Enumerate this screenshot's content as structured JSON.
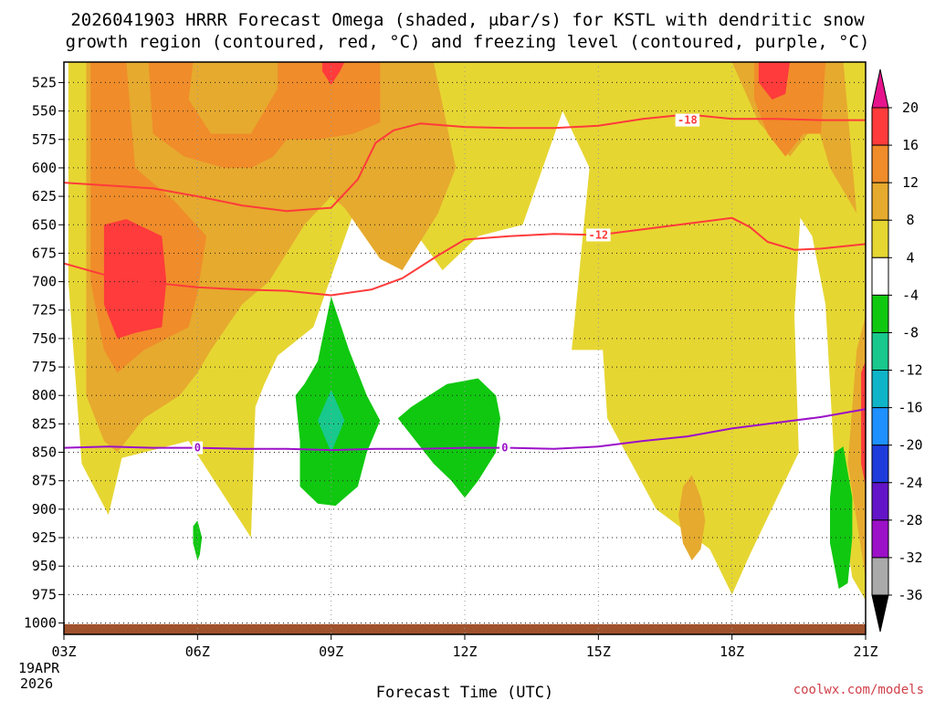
{
  "chart_data": {
    "type": "heatmap",
    "title_line1": "2026041903 HRRR Forecast Omega (shaded, μbar/s) for KSTL with dendritic snow",
    "title_line2": "growth region (contoured, red, °C) and freezing level (contoured, purple, °C)",
    "xlabel": "Forecast Time (UTC)",
    "credit": "coolwx.com/models",
    "x_unit": "forecast hour from 03Z",
    "x_range": [
      0,
      18
    ],
    "x_ticks": [
      {
        "value": 0,
        "label": "03Z"
      },
      {
        "value": 3,
        "label": "06Z"
      },
      {
        "value": 6,
        "label": "09Z"
      },
      {
        "value": 9,
        "label": "12Z"
      },
      {
        "value": 12,
        "label": "15Z"
      },
      {
        "value": 15,
        "label": "18Z"
      },
      {
        "value": 18,
        "label": "21Z"
      }
    ],
    "x_sublabels": [
      "19APR",
      "2026"
    ],
    "y_unit": "hPa",
    "y_range": [
      507,
      1010
    ],
    "y_ticks": [
      525,
      550,
      575,
      600,
      625,
      650,
      675,
      700,
      725,
      750,
      775,
      800,
      825,
      850,
      875,
      900,
      925,
      950,
      975,
      1000
    ],
    "colorbar": {
      "levels": [
        "20",
        "16",
        "12",
        "8",
        "4",
        "-4",
        "-8",
        "-12",
        "-16",
        "-20",
        "-24",
        "-28",
        "-32",
        "-36"
      ],
      "colors": [
        "#ff3b3b",
        "#f08c2a",
        "#e6aa2e",
        "#e6d632",
        "#ffffff",
        "#10c810",
        "#18c88c",
        "#10b4c8",
        "#1e90ff",
        "#1e3cdc",
        "#6414c8",
        "#9c10c8",
        "#aaaaaa"
      ],
      "top_arrow_color": "#e6148c",
      "bottom_arrow_color": "#000000"
    },
    "omega_regions": [
      {
        "level": "4",
        "color": "#e6d632",
        "points": [
          [
            0.1,
            507
          ],
          [
            7.4,
            507
          ],
          [
            9.3,
            507
          ],
          [
            10.6,
            507
          ],
          [
            12,
            507
          ],
          [
            13.6,
            507
          ],
          [
            16.6,
            507
          ],
          [
            16.6,
            600
          ],
          [
            16.4,
            730
          ],
          [
            16.5,
            850
          ],
          [
            15.4,
            940
          ],
          [
            15.0,
            975
          ],
          [
            14.5,
            935
          ],
          [
            13.3,
            900
          ],
          [
            12.2,
            820
          ],
          [
            12.1,
            760
          ],
          [
            11.4,
            760
          ],
          [
            11.8,
            600
          ],
          [
            11.2,
            550
          ],
          [
            10.3,
            650
          ],
          [
            9.3,
            660
          ],
          [
            8.5,
            690
          ],
          [
            7.4,
            630
          ],
          [
            6.5,
            640
          ],
          [
            5.6,
            740
          ],
          [
            4.8,
            765
          ],
          [
            4.5,
            790
          ],
          [
            4.3,
            810
          ],
          [
            4.2,
            925
          ],
          [
            2.8,
            840
          ],
          [
            1.3,
            855
          ],
          [
            1.0,
            905
          ],
          [
            0.4,
            860
          ],
          [
            0.1,
            700
          ]
        ]
      },
      {
        "level": "4",
        "color": "#e6d632",
        "points": [
          [
            14.3,
            507
          ],
          [
            18.0,
            507
          ],
          [
            18.0,
            980
          ],
          [
            17.7,
            960
          ],
          [
            17.3,
            860
          ],
          [
            17.1,
            720
          ],
          [
            16.8,
            660
          ],
          [
            16.3,
            630
          ],
          [
            15.6,
            600
          ],
          [
            15.2,
            560
          ]
        ]
      },
      {
        "level": "8",
        "color": "#e6aa2e",
        "points": [
          [
            0.5,
            507
          ],
          [
            5.0,
            507
          ],
          [
            8.3,
            507
          ],
          [
            8.8,
            600
          ],
          [
            8.4,
            640
          ],
          [
            7.6,
            690
          ],
          [
            7.1,
            680
          ],
          [
            6.3,
            635
          ],
          [
            6.0,
            625
          ],
          [
            5.4,
            650
          ],
          [
            4.6,
            700
          ],
          [
            4.0,
            720
          ],
          [
            3.3,
            760
          ],
          [
            3.0,
            780
          ],
          [
            2.6,
            800
          ],
          [
            1.8,
            820
          ],
          [
            1.2,
            850
          ],
          [
            0.9,
            840
          ],
          [
            0.5,
            800
          ]
        ]
      },
      {
        "level": "8",
        "color": "#e6aa2e",
        "points": [
          [
            15.0,
            507
          ],
          [
            17.5,
            507
          ],
          [
            17.8,
            640
          ],
          [
            17.2,
            600
          ],
          [
            16.9,
            560
          ],
          [
            16.3,
            590
          ],
          [
            15.6,
            560
          ]
        ]
      },
      {
        "level": "8",
        "color": "#e6aa2e",
        "points": [
          [
            17.8,
            760
          ],
          [
            18.0,
            730
          ],
          [
            18.0,
            960
          ],
          [
            17.6,
            860
          ]
        ]
      },
      {
        "level": "8",
        "color": "#e6aa2e",
        "points": [
          [
            13.9,
            880
          ],
          [
            14.1,
            870
          ],
          [
            14.3,
            890
          ],
          [
            14.4,
            910
          ],
          [
            14.3,
            935
          ],
          [
            14.1,
            945
          ],
          [
            13.9,
            930
          ],
          [
            13.8,
            905
          ]
        ]
      },
      {
        "level": "12",
        "color": "#f08c2a",
        "points": [
          [
            0.6,
            507
          ],
          [
            1.9,
            507
          ],
          [
            2.0,
            570
          ],
          [
            2.7,
            590
          ],
          [
            3.6,
            600
          ],
          [
            4.2,
            600
          ],
          [
            4.7,
            590
          ],
          [
            5.0,
            575
          ],
          [
            5.7,
            575
          ],
          [
            6.5,
            570
          ],
          [
            7.1,
            560
          ],
          [
            7.1,
            507
          ],
          [
            5.0,
            507
          ],
          [
            4.8,
            507
          ],
          [
            4.8,
            530
          ],
          [
            4.2,
            570
          ],
          [
            3.3,
            570
          ],
          [
            2.8,
            540
          ],
          [
            2.9,
            507
          ],
          [
            2.6,
            507
          ],
          [
            1.4,
            507
          ],
          [
            1.6,
            600
          ],
          [
            2.5,
            630
          ],
          [
            3.2,
            660
          ],
          [
            3.0,
            710
          ],
          [
            2.8,
            740
          ],
          [
            1.8,
            760
          ],
          [
            1.2,
            780
          ],
          [
            0.9,
            760
          ],
          [
            0.6,
            700
          ]
        ]
      },
      {
        "level": "12",
        "color": "#f08c2a",
        "points": [
          [
            15.5,
            507
          ],
          [
            17.1,
            507
          ],
          [
            17.0,
            570
          ],
          [
            16.6,
            570
          ],
          [
            16.2,
            590
          ],
          [
            15.8,
            570
          ],
          [
            15.5,
            540
          ]
        ]
      },
      {
        "level": "16",
        "color": "#ff3b3b",
        "points": [
          [
            0.9,
            650
          ],
          [
            1.4,
            645
          ],
          [
            2.2,
            660
          ],
          [
            2.3,
            700
          ],
          [
            2.2,
            740
          ],
          [
            1.6,
            745
          ],
          [
            1.2,
            750
          ],
          [
            0.9,
            720
          ]
        ]
      },
      {
        "level": "16",
        "color": "#ff3b3b",
        "points": [
          [
            5.8,
            507
          ],
          [
            6.3,
            507
          ],
          [
            6.2,
            515
          ],
          [
            6.0,
            527
          ],
          [
            5.8,
            515
          ]
        ]
      },
      {
        "level": "16",
        "color": "#ff3b3b",
        "points": [
          [
            17.9,
            780
          ],
          [
            18.0,
            770
          ],
          [
            18.0,
            880
          ],
          [
            17.9,
            860
          ]
        ]
      },
      {
        "level": "16",
        "color": "#ff3b3b",
        "points": [
          [
            15.6,
            507
          ],
          [
            16.3,
            507
          ],
          [
            16.2,
            535
          ],
          [
            15.9,
            540
          ],
          [
            15.6,
            525
          ]
        ]
      },
      {
        "level": "-4",
        "color": "#10c810",
        "points": [
          [
            6.0,
            713
          ],
          [
            6.4,
            760
          ],
          [
            6.8,
            800
          ],
          [
            7.1,
            822
          ],
          [
            6.8,
            850
          ],
          [
            6.6,
            880
          ],
          [
            6.1,
            897
          ],
          [
            5.7,
            895
          ],
          [
            5.3,
            880
          ],
          [
            5.3,
            840
          ],
          [
            5.2,
            800
          ],
          [
            5.4,
            790
          ],
          [
            5.7,
            770
          ]
        ]
      },
      {
        "level": "-4",
        "color": "#10c810",
        "points": [
          [
            7.5,
            820
          ],
          [
            7.8,
            810
          ],
          [
            8.6,
            790
          ],
          [
            9.3,
            785
          ],
          [
            9.7,
            800
          ],
          [
            9.8,
            820
          ],
          [
            9.7,
            850
          ],
          [
            9.3,
            875
          ],
          [
            9.0,
            890
          ],
          [
            8.7,
            875
          ],
          [
            8.3,
            860
          ],
          [
            7.9,
            840
          ]
        ]
      },
      {
        "level": "-4",
        "color": "#10c810",
        "points": [
          [
            2.9,
            915
          ],
          [
            3.0,
            910
          ],
          [
            3.1,
            925
          ],
          [
            3.05,
            940
          ],
          [
            3.0,
            945
          ],
          [
            2.9,
            930
          ]
        ]
      },
      {
        "level": "-4",
        "color": "#10c810",
        "points": [
          [
            17.3,
            850
          ],
          [
            17.5,
            845
          ],
          [
            17.7,
            890
          ],
          [
            17.7,
            925
          ],
          [
            17.6,
            965
          ],
          [
            17.4,
            970
          ],
          [
            17.2,
            930
          ],
          [
            17.2,
            890
          ]
        ]
      },
      {
        "level": "-8",
        "color": "#18c88c",
        "points": [
          [
            6.0,
            795
          ],
          [
            6.3,
            822
          ],
          [
            6.0,
            850
          ],
          [
            5.7,
            822
          ]
        ]
      }
    ],
    "dendritic_contours": [
      {
        "label": "-18",
        "color": "#ff3b3b",
        "label_at": [
          14.0,
          558
        ],
        "points": [
          [
            0,
            613
          ],
          [
            2,
            618
          ],
          [
            3,
            625
          ],
          [
            4,
            633
          ],
          [
            5,
            638
          ],
          [
            6,
            635
          ],
          [
            6.6,
            610
          ],
          [
            7.0,
            578
          ],
          [
            7.4,
            567
          ],
          [
            8,
            561
          ],
          [
            9,
            564
          ],
          [
            10,
            565
          ],
          [
            11,
            565
          ],
          [
            12,
            563
          ],
          [
            13.0,
            557
          ],
          [
            14.0,
            553
          ],
          [
            15,
            557
          ],
          [
            16,
            557
          ],
          [
            17,
            558
          ],
          [
            18,
            558
          ]
        ]
      },
      {
        "label": "-12",
        "color": "#ff3b3b",
        "label_at": [
          12.0,
          659
        ],
        "points": [
          [
            0,
            684
          ],
          [
            1,
            695
          ],
          [
            2,
            701
          ],
          [
            3,
            705
          ],
          [
            4,
            707
          ],
          [
            5,
            708
          ],
          [
            6,
            712
          ],
          [
            6.9,
            707
          ],
          [
            7.6,
            697
          ],
          [
            8.4,
            677
          ],
          [
            9.0,
            663
          ],
          [
            10.0,
            660
          ],
          [
            11,
            658
          ],
          [
            12,
            659
          ],
          [
            13,
            654
          ],
          [
            14,
            649
          ],
          [
            15.0,
            644
          ],
          [
            15.4,
            652
          ],
          [
            15.8,
            665
          ],
          [
            16.4,
            672
          ],
          [
            17,
            671
          ],
          [
            18,
            667
          ]
        ]
      }
    ],
    "freezing_level": {
      "label": "0",
      "color": "#9c10c8",
      "label_at": [
        [
          3.0,
          846
        ],
        [
          9.9,
          846
        ]
      ],
      "points": [
        [
          0,
          846
        ],
        [
          1,
          845
        ],
        [
          2,
          846
        ],
        [
          3,
          846
        ],
        [
          4,
          847
        ],
        [
          5,
          847
        ],
        [
          6,
          848
        ],
        [
          7,
          847
        ],
        [
          8,
          847
        ],
        [
          9,
          846
        ],
        [
          10,
          846
        ],
        [
          11,
          847
        ],
        [
          12,
          845
        ],
        [
          13,
          840
        ],
        [
          14,
          836
        ],
        [
          15,
          829
        ],
        [
          16,
          824
        ],
        [
          17,
          819
        ],
        [
          18,
          812
        ]
      ]
    },
    "surface_band": {
      "color": "#a0522d",
      "from": 1001,
      "to": 1010
    }
  }
}
